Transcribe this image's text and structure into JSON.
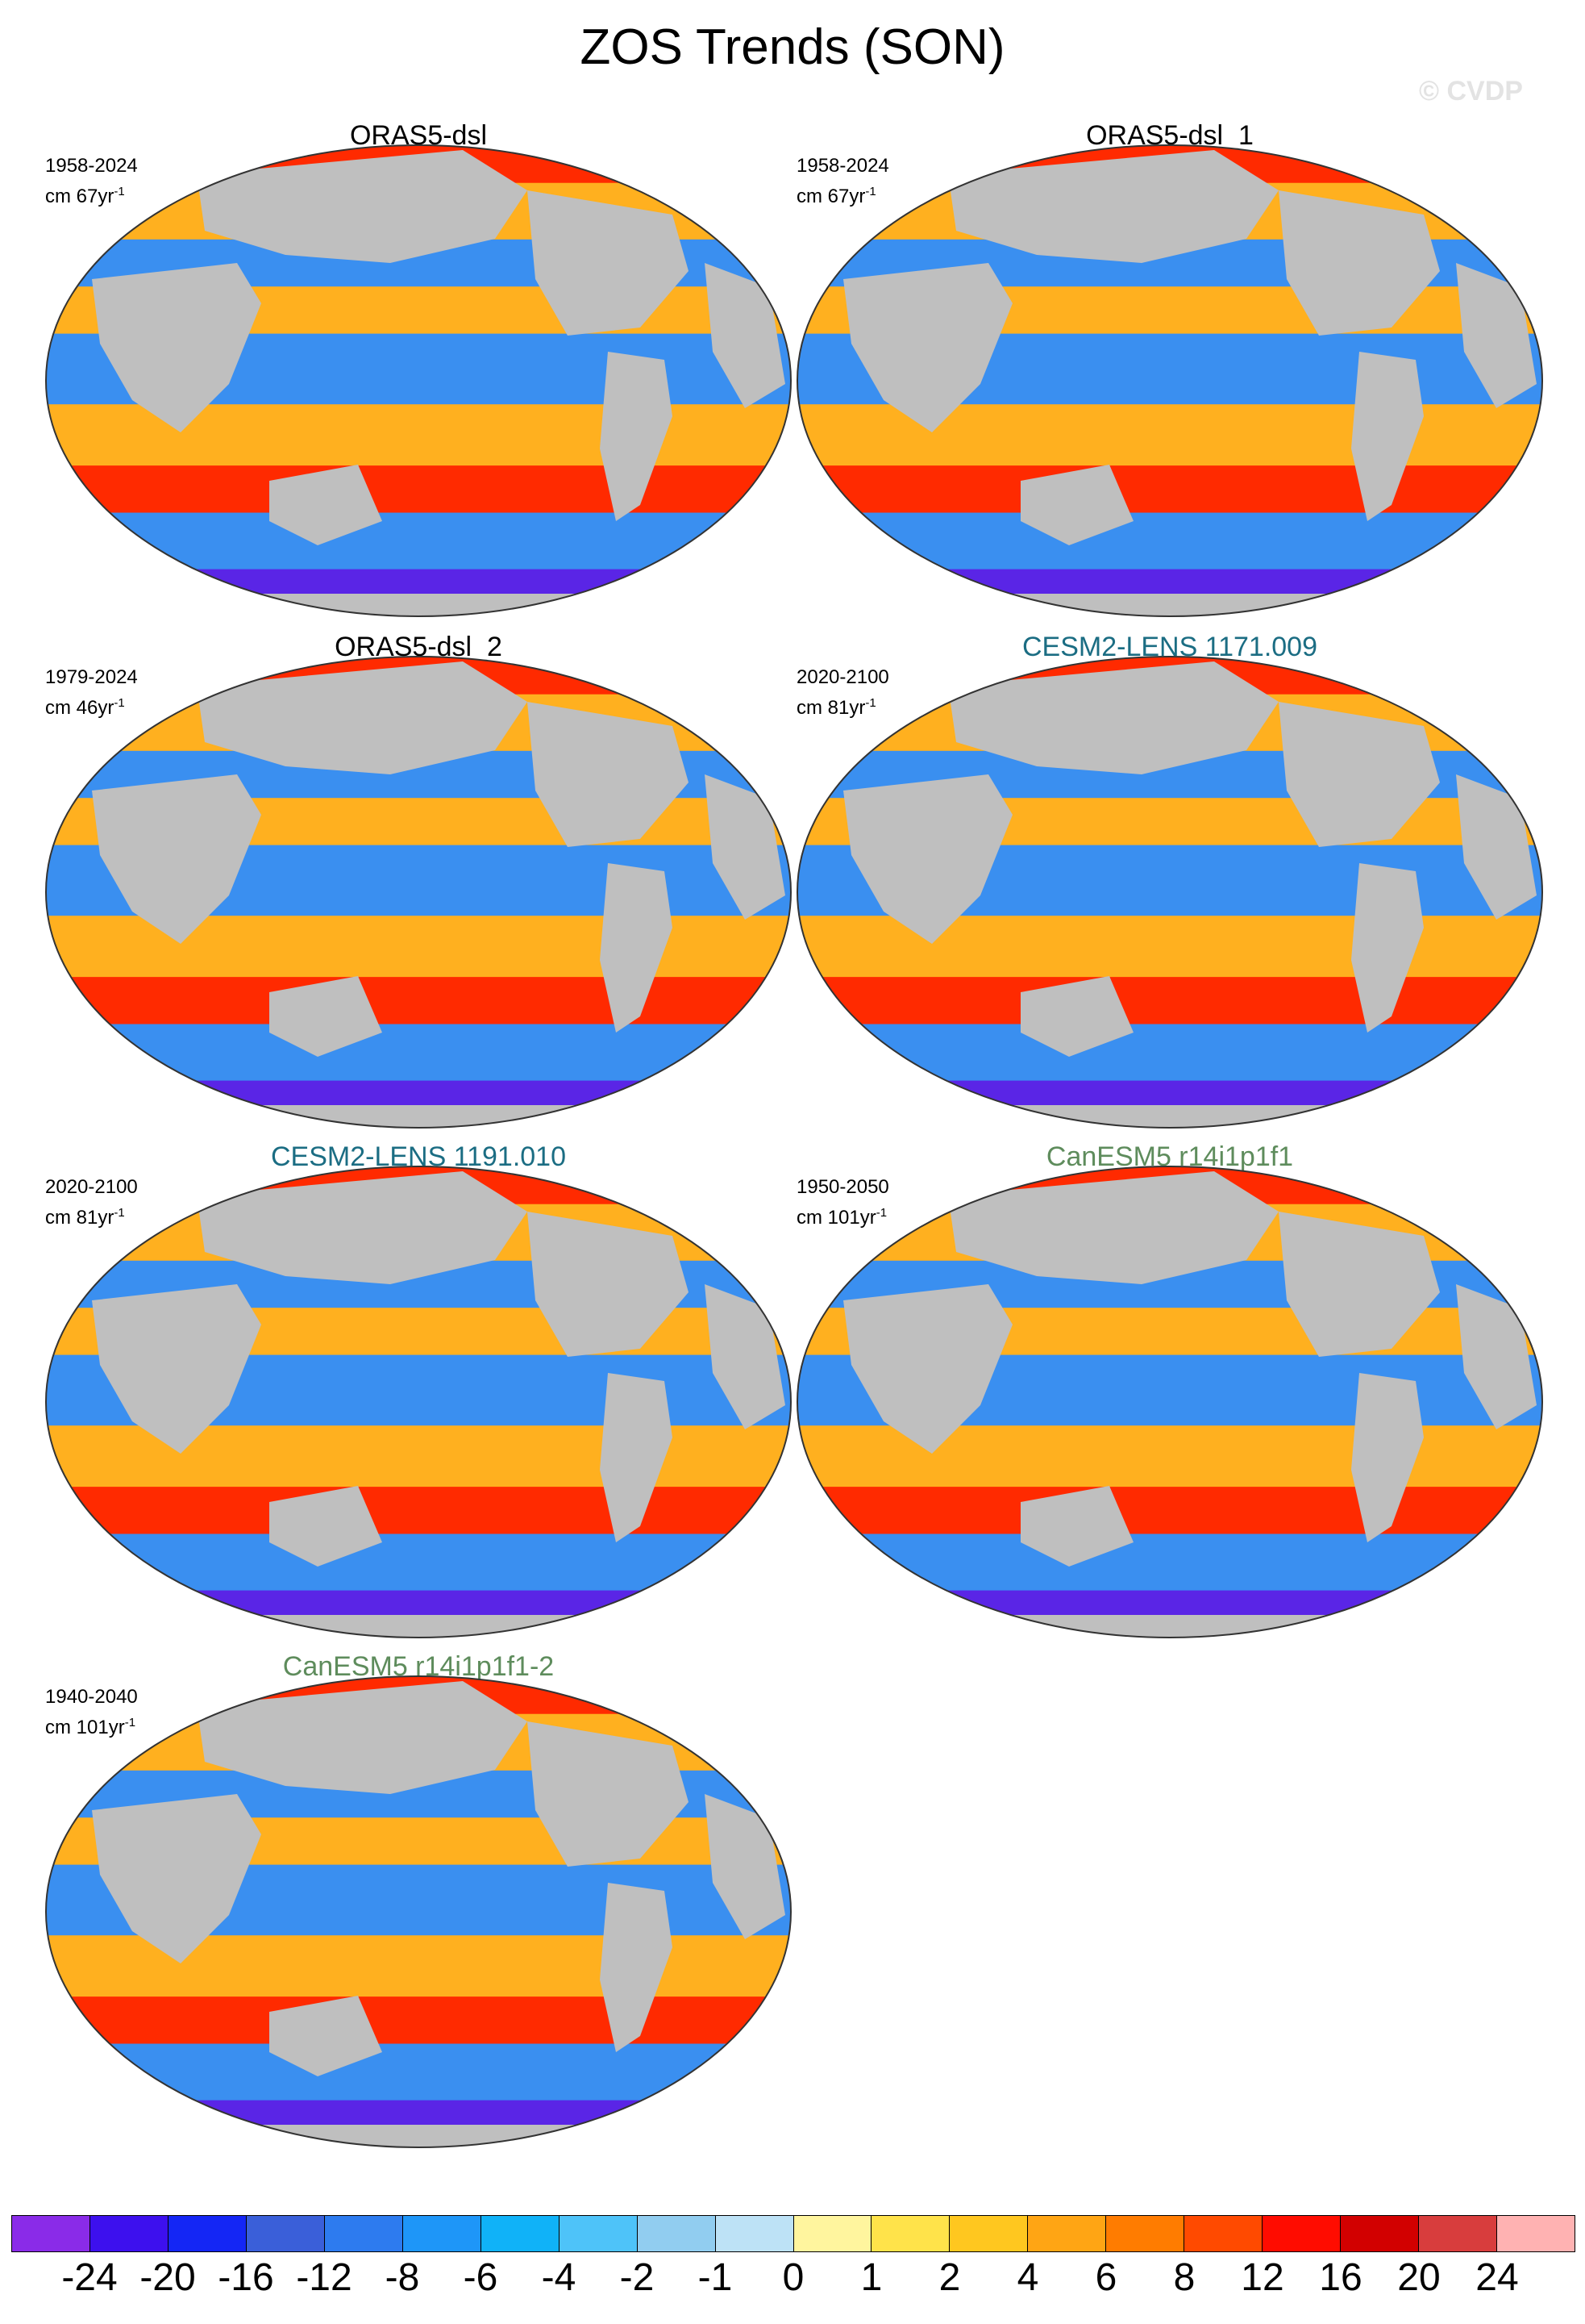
{
  "title": "ZOS Trends (SON)",
  "watermark": "© CVDP",
  "panels": [
    {
      "title": "ORAS5-dsl",
      "years": "1958-2024",
      "units_base": "cm 67yr",
      "units_exp": "-1",
      "style": "obs"
    },
    {
      "title": "ORAS5-dsl_1",
      "years": "1958-2024",
      "units_base": "cm 67yr",
      "units_exp": "-1",
      "style": "obs"
    },
    {
      "title": "ORAS5-dsl_2",
      "years": "1979-2024",
      "units_base": "cm 46yr",
      "units_exp": "-1",
      "style": "obs"
    },
    {
      "title": "CESM2-LENS 1171.009",
      "years": "2020-2100",
      "units_base": "cm 81yr",
      "units_exp": "-1",
      "style": "cesm"
    },
    {
      "title": "CESM2-LENS 1191.010",
      "years": "2020-2100",
      "units_base": "cm 81yr",
      "units_exp": "-1",
      "style": "cesm"
    },
    {
      "title": "CanESM5 r14i1p1f1",
      "years": "1950-2050",
      "units_base": "cm 101yr",
      "units_exp": "-1",
      "style": "can"
    },
    {
      "title": "CanESM5 r14i1p1f1-2",
      "years": "1940-2040",
      "units_base": "cm 101yr",
      "units_exp": "-1",
      "style": "can"
    }
  ],
  "colorbar": {
    "colors": [
      "#8a2be8",
      "#3d10ee",
      "#1426f5",
      "#3a5fd9",
      "#2d7bef",
      "#1e96f8",
      "#10b2f8",
      "#4ec3f9",
      "#91cdf0",
      "#bde2f6",
      "#fff59e",
      "#ffe34a",
      "#ffc71f",
      "#ffa514",
      "#ff7c00",
      "#ff4a00",
      "#ff0c00",
      "#d20000",
      "#d83d3d",
      "#ffb2b2"
    ],
    "labels": [
      "-24",
      "-20",
      "-16",
      "-12",
      "-8",
      "-6",
      "-4",
      "-2",
      "-1",
      "0",
      "1",
      "2",
      "4",
      "6",
      "8",
      "12",
      "16",
      "20",
      "24"
    ]
  },
  "map_colors": {
    "land": "#bfbfbf",
    "ocean_neg": "#3a8ff0",
    "ocean_pos": "#ffb01f",
    "strong_neg": "#5a25e6",
    "strong_pos": "#ff2a00"
  }
}
